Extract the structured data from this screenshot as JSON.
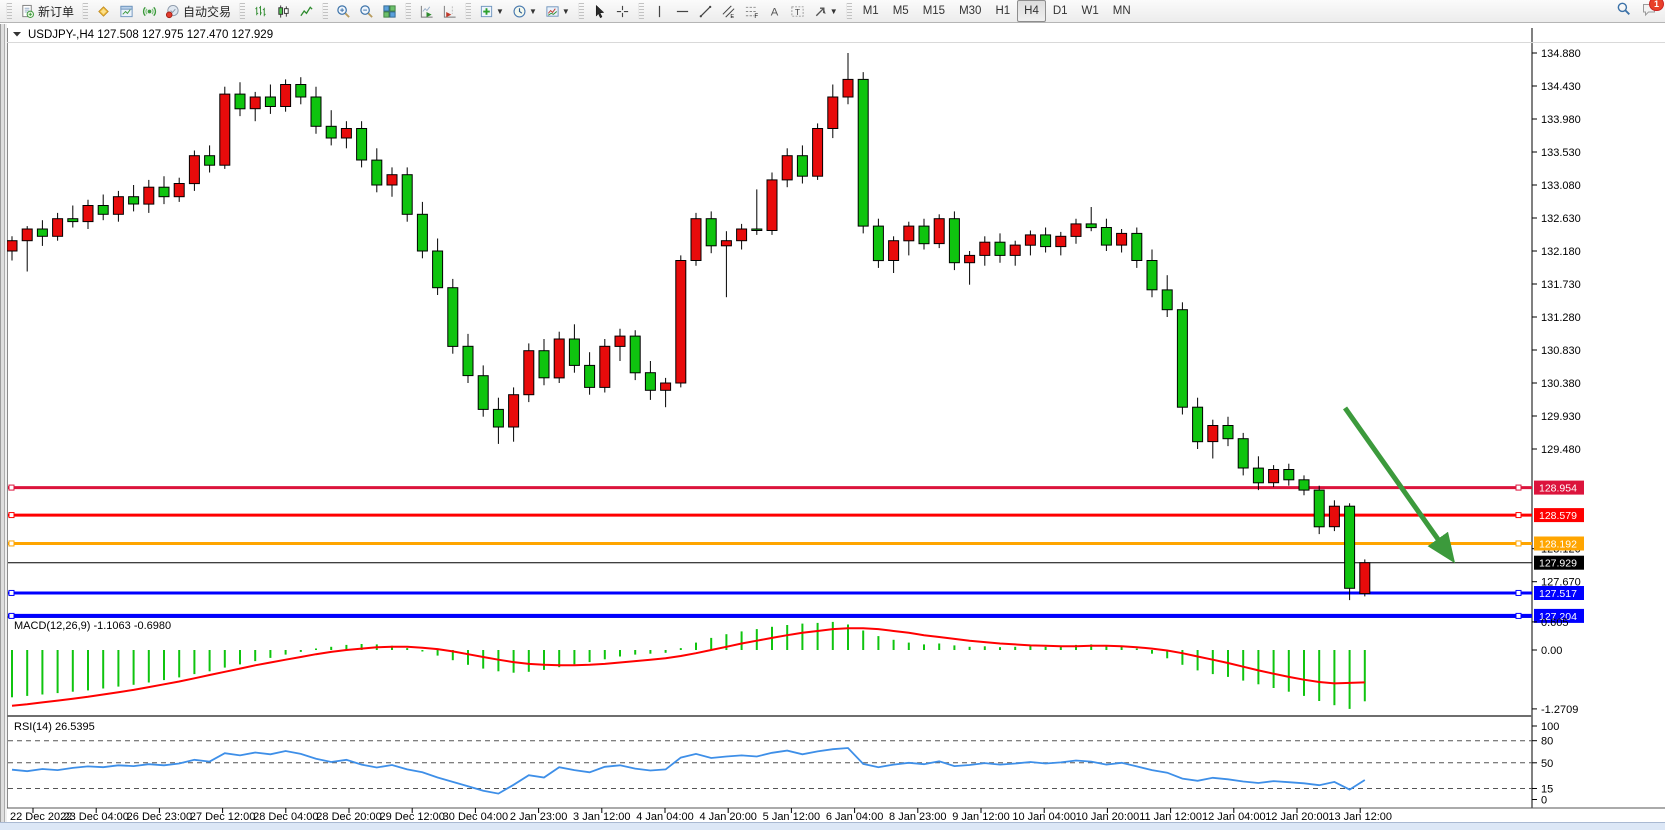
{
  "toolbar": {
    "groups": [
      {
        "items": [
          {
            "name": "new-order-button",
            "icon": "new-order-icon",
            "label": "新订单"
          }
        ]
      },
      {
        "items": [
          {
            "name": "market-watch-button",
            "icon": "gold-icon"
          },
          {
            "name": "data-window-button",
            "icon": "data-window-icon"
          },
          {
            "name": "signals-button",
            "icon": "signals-icon"
          },
          {
            "name": "autotrading-button",
            "icon": "autotrading-icon",
            "label": "自动交易"
          }
        ]
      },
      {
        "items": [
          {
            "name": "bar-chart-button",
            "icon": "bar-chart-icon"
          },
          {
            "name": "candle-chart-button",
            "icon": "candle-chart-icon"
          },
          {
            "name": "line-chart-button",
            "icon": "line-chart-icon"
          }
        ]
      },
      {
        "items": [
          {
            "name": "zoom-in-button",
            "icon": "zoom-in-icon"
          },
          {
            "name": "zoom-out-button",
            "icon": "zoom-out-icon"
          },
          {
            "name": "tile-windows-button",
            "icon": "tile-windows-icon"
          }
        ]
      },
      {
        "items": [
          {
            "name": "auto-scroll-button",
            "icon": "auto-scroll-icon"
          },
          {
            "name": "chart-shift-button",
            "icon": "chart-shift-icon"
          }
        ]
      },
      {
        "items": [
          {
            "name": "add-indicator-button",
            "icon": "add-indicator-icon",
            "dropdown": true
          },
          {
            "name": "periods-button",
            "icon": "periods-icon",
            "dropdown": true
          },
          {
            "name": "templates-button",
            "icon": "templates-icon",
            "dropdown": true
          }
        ]
      },
      {
        "items": [
          {
            "name": "cursor-button",
            "icon": "cursor-icon"
          },
          {
            "name": "crosshair-button",
            "icon": "crosshair-icon"
          }
        ]
      },
      {
        "items": [
          {
            "name": "vertical-line-button",
            "icon": "vertical-line-icon"
          },
          {
            "name": "horizontal-line-button",
            "icon": "horizontal-line-icon"
          },
          {
            "name": "trendline-button",
            "icon": "trendline-icon"
          },
          {
            "name": "channel-button",
            "icon": "channel-icon"
          },
          {
            "name": "fibonacci-button",
            "icon": "fibonacci-icon"
          },
          {
            "name": "text-button",
            "icon": "text-icon"
          },
          {
            "name": "label-button",
            "icon": "label-icon"
          },
          {
            "name": "arrows-button",
            "icon": "arrows-icon",
            "dropdown": true
          }
        ]
      }
    ],
    "timeframes": [
      "M1",
      "M5",
      "M15",
      "M30",
      "H1",
      "H4",
      "D1",
      "W1",
      "MN"
    ],
    "active_timeframe": "H4",
    "right_items": [
      {
        "name": "search-button",
        "icon": "search-icon"
      },
      {
        "name": "chat-button",
        "icon": "chat-icon",
        "badge": "1"
      }
    ],
    "chat_badge": "1"
  },
  "chart": {
    "symbol_period": "USDJPY-,H4",
    "open": "127.508",
    "high": "127.975",
    "low": "127.470",
    "close": "127.929",
    "title_text": "USDJPY-,H4  127.508 127.975 127.470 127.929"
  },
  "chart_data": {
    "type": "candlestick",
    "symbol": "USDJPY-",
    "timeframe": "H4",
    "color_convention": "red = bullish (up), green = bearish (down) — Chinese convention",
    "colors": {
      "up_candle": "#e80b0b",
      "down_candle": "#0fc40f",
      "candle_outline": "#000000",
      "macd_histogram": "#0fc40f",
      "macd_signal": "#ff0000",
      "rsi_line": "#3e8fe8",
      "arrow": "#3c9a3c"
    },
    "ylim": [
      127.22,
      135.03
    ],
    "y_ticks": [
      "134.880",
      "134.430",
      "133.980",
      "133.530",
      "133.080",
      "132.630",
      "132.180",
      "131.730",
      "131.280",
      "130.830",
      "130.380",
      "129.930",
      "129.480",
      "128.120",
      "127.670"
    ],
    "x_labels": [
      "22 Dec 2022",
      "23 Dec 04:00",
      "26 Dec 23:00",
      "27 Dec 12:00",
      "28 Dec 04:00",
      "28 Dec 20:00",
      "29 Dec 12:00",
      "30 Dec 04:00",
      "2 Jan 23:00",
      "3 Jan 12:00",
      "4 Jan 04:00",
      "4 Jan 20:00",
      "5 Jan 12:00",
      "6 Jan 04:00",
      "8 Jan 23:00",
      "9 Jan 12:00",
      "10 Jan 04:00",
      "10 Jan 20:00",
      "11 Jan 12:00",
      "12 Jan 04:00",
      "12 Jan 20:00",
      "13 Jan 12:00"
    ],
    "levels": [
      {
        "price": "128.954",
        "value": 128.954,
        "color": "#dc143c",
        "width": 3,
        "anchors": true
      },
      {
        "price": "128.579",
        "value": 128.579,
        "color": "#ff0000",
        "width": 3,
        "anchors": true
      },
      {
        "price": "128.192",
        "value": 128.192,
        "color": "#ffa500",
        "width": 3,
        "anchors": true
      },
      {
        "price": "127.929",
        "value": 127.929,
        "color": "#000000",
        "width": 1,
        "anchors": false,
        "role": "bid-price-line"
      },
      {
        "price": "127.517",
        "value": 127.517,
        "color": "#0000ff",
        "width": 3,
        "anchors": true
      },
      {
        "price": "127.204",
        "value": 127.204,
        "color": "#0000ff",
        "width": 4,
        "anchors": true
      }
    ],
    "annotation_arrow": {
      "color": "#3c9a3c",
      "from": {
        "bar": 87.7,
        "price": 130.04
      },
      "to": {
        "bar": 94.6,
        "price": 128.02
      }
    },
    "candles": [
      [
        132.18,
        132.38,
        132.05,
        132.32
      ],
      [
        132.32,
        132.52,
        131.9,
        132.48
      ],
      [
        132.48,
        132.6,
        132.25,
        132.38
      ],
      [
        132.38,
        132.7,
        132.32,
        132.62
      ],
      [
        132.62,
        132.8,
        132.5,
        132.58
      ],
      [
        132.58,
        132.88,
        132.48,
        132.8
      ],
      [
        132.8,
        132.95,
        132.6,
        132.68
      ],
      [
        132.68,
        133.0,
        132.58,
        132.92
      ],
      [
        132.92,
        133.08,
        132.72,
        132.82
      ],
      [
        132.82,
        133.15,
        132.7,
        133.05
      ],
      [
        133.05,
        133.2,
        132.82,
        132.92
      ],
      [
        132.92,
        133.18,
        132.85,
        133.1
      ],
      [
        133.1,
        133.55,
        133.0,
        133.48
      ],
      [
        133.48,
        133.62,
        133.25,
        133.35
      ],
      [
        133.35,
        134.42,
        133.3,
        134.32
      ],
      [
        134.32,
        134.48,
        134.02,
        134.12
      ],
      [
        134.12,
        134.35,
        133.95,
        134.28
      ],
      [
        134.28,
        134.45,
        134.05,
        134.15
      ],
      [
        134.15,
        134.52,
        134.08,
        134.45
      ],
      [
        134.45,
        134.55,
        134.18,
        134.28
      ],
      [
        134.28,
        134.42,
        133.78,
        133.88
      ],
      [
        133.88,
        134.1,
        133.62,
        133.72
      ],
      [
        133.72,
        133.95,
        133.58,
        133.85
      ],
      [
        133.85,
        133.95,
        133.32,
        133.42
      ],
      [
        133.42,
        133.58,
        132.98,
        133.08
      ],
      [
        133.08,
        133.32,
        132.92,
        133.22
      ],
      [
        133.22,
        133.32,
        132.58,
        132.68
      ],
      [
        132.68,
        132.85,
        132.08,
        132.18
      ],
      [
        132.18,
        132.35,
        131.58,
        131.68
      ],
      [
        131.68,
        131.8,
        130.78,
        130.88
      ],
      [
        130.88,
        131.05,
        130.38,
        130.48
      ],
      [
        130.48,
        130.62,
        129.92,
        130.02
      ],
      [
        130.02,
        130.18,
        129.55,
        129.78
      ],
      [
        129.78,
        130.32,
        129.58,
        130.22
      ],
      [
        130.22,
        130.92,
        130.12,
        130.82
      ],
      [
        130.82,
        130.98,
        130.35,
        130.45
      ],
      [
        130.45,
        131.08,
        130.38,
        130.98
      ],
      [
        130.98,
        131.18,
        130.52,
        130.62
      ],
      [
        130.62,
        130.8,
        130.22,
        130.32
      ],
      [
        130.32,
        130.98,
        130.25,
        130.88
      ],
      [
        130.88,
        131.12,
        130.68,
        131.02
      ],
      [
        131.02,
        131.1,
        130.42,
        130.52
      ],
      [
        130.52,
        130.68,
        130.15,
        130.28
      ],
      [
        130.28,
        130.45,
        130.05,
        130.38
      ],
      [
        130.38,
        132.12,
        130.32,
        132.05
      ],
      [
        132.05,
        132.7,
        131.98,
        132.62
      ],
      [
        132.62,
        132.72,
        132.15,
        132.25
      ],
      [
        132.25,
        132.45,
        131.55,
        132.32
      ],
      [
        132.32,
        132.55,
        132.2,
        132.48
      ],
      [
        132.48,
        133.02,
        132.4,
        132.46
      ],
      [
        132.46,
        133.25,
        132.4,
        133.15
      ],
      [
        133.15,
        133.58,
        133.05,
        133.48
      ],
      [
        133.48,
        133.62,
        133.1,
        133.2
      ],
      [
        133.2,
        133.92,
        133.15,
        133.85
      ],
      [
        133.85,
        134.45,
        133.72,
        134.28
      ],
      [
        134.28,
        134.88,
        134.18,
        134.52
      ],
      [
        134.52,
        134.62,
        132.42,
        132.52
      ],
      [
        132.52,
        132.62,
        131.95,
        132.05
      ],
      [
        132.05,
        132.38,
        131.88,
        132.32
      ],
      [
        132.32,
        132.58,
        132.12,
        132.52
      ],
      [
        132.52,
        132.62,
        132.2,
        132.28
      ],
      [
        132.28,
        132.68,
        132.22,
        132.62
      ],
      [
        132.62,
        132.72,
        131.92,
        132.02
      ],
      [
        132.02,
        132.18,
        131.72,
        132.12
      ],
      [
        132.12,
        132.38,
        131.98,
        132.3
      ],
      [
        132.3,
        132.42,
        132.02,
        132.12
      ],
      [
        132.12,
        132.32,
        131.98,
        132.26
      ],
      [
        132.26,
        132.46,
        132.12,
        132.4
      ],
      [
        132.4,
        132.5,
        132.16,
        132.24
      ],
      [
        132.24,
        132.44,
        132.12,
        132.38
      ],
      [
        132.38,
        132.62,
        132.28,
        132.55
      ],
      [
        132.55,
        132.78,
        132.45,
        132.5
      ],
      [
        132.5,
        132.62,
        132.18,
        132.26
      ],
      [
        132.26,
        132.48,
        132.16,
        132.42
      ],
      [
        132.42,
        132.5,
        131.95,
        132.05
      ],
      [
        132.05,
        132.2,
        131.55,
        131.65
      ],
      [
        131.65,
        131.85,
        131.28,
        131.38
      ],
      [
        131.38,
        131.48,
        129.95,
        130.05
      ],
      [
        130.05,
        130.18,
        129.48,
        129.58
      ],
      [
        129.58,
        129.88,
        129.35,
        129.8
      ],
      [
        129.8,
        129.92,
        129.52,
        129.62
      ],
      [
        129.62,
        129.7,
        129.12,
        129.22
      ],
      [
        129.22,
        129.38,
        128.92,
        129.02
      ],
      [
        129.02,
        129.26,
        128.96,
        129.2
      ],
      [
        129.2,
        129.28,
        128.98,
        129.06
      ],
      [
        129.06,
        129.12,
        128.85,
        128.92
      ],
      [
        128.92,
        128.98,
        128.32,
        128.42
      ],
      [
        128.42,
        128.78,
        128.36,
        128.7
      ],
      [
        128.7,
        128.74,
        127.42,
        127.58
      ],
      [
        127.508,
        127.975,
        127.47,
        127.929
      ]
    ],
    "indicators": [
      {
        "name": "MACD",
        "label": "MACD(12,26,9) -1.1063 -0.6980",
        "params": "12,26,9",
        "current_values": [
          "-1.1063",
          "-0.6980"
        ],
        "ylim": [
          -1.2709,
          0.605
        ],
        "y_ticks": [
          "0.605",
          "0.00",
          "-1.2709"
        ],
        "histogram": [
          -1.02,
          -0.99,
          -0.96,
          -0.93,
          -0.9,
          -0.87,
          -0.83,
          -0.79,
          -0.75,
          -0.7,
          -0.65,
          -0.59,
          -0.52,
          -0.46,
          -0.38,
          -0.31,
          -0.24,
          -0.17,
          -0.1,
          -0.04,
          0.02,
          0.07,
          0.11,
          0.13,
          0.12,
          0.09,
          0.04,
          -0.03,
          -0.12,
          -0.22,
          -0.32,
          -0.4,
          -0.46,
          -0.49,
          -0.47,
          -0.43,
          -0.37,
          -0.31,
          -0.26,
          -0.2,
          -0.14,
          -0.1,
          -0.08,
          -0.06,
          0.04,
          0.16,
          0.26,
          0.34,
          0.4,
          0.45,
          0.5,
          0.54,
          0.57,
          0.585,
          0.605,
          0.55,
          0.42,
          0.3,
          0.22,
          0.16,
          0.12,
          0.14,
          0.1,
          0.07,
          0.08,
          0.06,
          0.07,
          0.09,
          0.07,
          0.08,
          0.11,
          0.12,
          0.09,
          0.07,
          0.0,
          -0.08,
          -0.18,
          -0.32,
          -0.44,
          -0.52,
          -0.58,
          -0.66,
          -0.74,
          -0.82,
          -0.9,
          -0.99,
          -1.1,
          -1.19,
          -1.2709,
          -1.1063
        ],
        "signal": [
          -1.2,
          -1.17,
          -1.13,
          -1.09,
          -1.05,
          -1.01,
          -0.96,
          -0.91,
          -0.86,
          -0.8,
          -0.74,
          -0.68,
          -0.61,
          -0.54,
          -0.47,
          -0.4,
          -0.33,
          -0.27,
          -0.21,
          -0.15,
          -0.09,
          -0.04,
          0.0,
          0.03,
          0.06,
          0.07,
          0.07,
          0.05,
          0.02,
          -0.03,
          -0.09,
          -0.15,
          -0.21,
          -0.26,
          -0.3,
          -0.32,
          -0.33,
          -0.33,
          -0.32,
          -0.3,
          -0.27,
          -0.24,
          -0.21,
          -0.18,
          -0.13,
          -0.07,
          0.0,
          0.07,
          0.14,
          0.2,
          0.26,
          0.32,
          0.37,
          0.41,
          0.45,
          0.47,
          0.47,
          0.45,
          0.41,
          0.37,
          0.32,
          0.28,
          0.24,
          0.2,
          0.17,
          0.14,
          0.12,
          0.1,
          0.09,
          0.08,
          0.08,
          0.09,
          0.09,
          0.08,
          0.06,
          0.03,
          -0.01,
          -0.07,
          -0.14,
          -0.21,
          -0.28,
          -0.36,
          -0.44,
          -0.51,
          -0.58,
          -0.64,
          -0.69,
          -0.72,
          -0.71,
          -0.698
        ]
      },
      {
        "name": "RSI",
        "label": "RSI(14) 26.5395",
        "params": "14",
        "current_value": "26.5395",
        "levels": [
          80,
          50,
          15
        ],
        "y_ticks": [
          "100",
          "80",
          "50",
          "15",
          "0"
        ],
        "values": [
          40.5,
          38.5,
          41.5,
          40,
          43,
          45,
          44,
          46.5,
          45.5,
          48,
          46.5,
          49,
          54,
          51.5,
          63,
          60,
          64,
          61.5,
          66,
          62,
          55.5,
          51,
          54,
          47.5,
          43.5,
          47,
          41,
          37,
          30,
          24,
          18,
          12,
          8,
          20,
          33,
          30,
          44,
          40,
          37,
          44.5,
          46.5,
          42,
          39.5,
          41,
          57,
          62,
          56.5,
          58.5,
          60,
          58.5,
          63.5,
          66.5,
          61.5,
          65.5,
          68.5,
          70,
          48.5,
          44,
          47.5,
          50,
          48,
          52,
          45.5,
          47,
          49.5,
          47.5,
          49,
          51,
          49,
          50.5,
          53,
          51.5,
          47.5,
          50,
          45,
          40,
          36.5,
          28.5,
          25.5,
          29.5,
          27.5,
          24.5,
          22.5,
          25,
          23.5,
          22,
          19.5,
          24,
          13.5,
          26.54
        ]
      }
    ]
  }
}
